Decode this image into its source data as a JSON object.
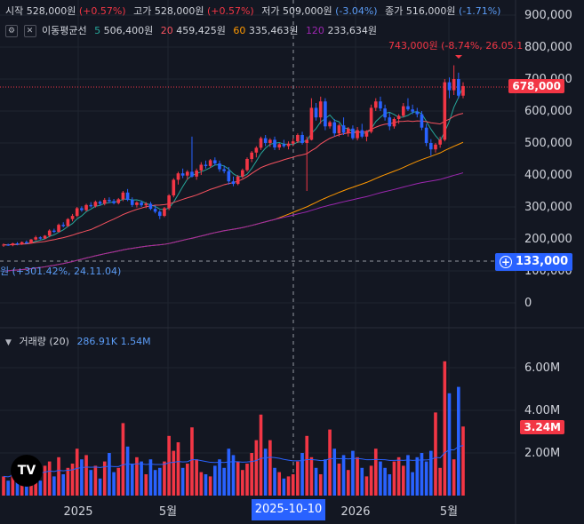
{
  "legend": {
    "open_label": "시작",
    "open_value": "528,000원",
    "open_change": "(+0.57%)",
    "high_label": "고가",
    "high_value": "528,000원",
    "high_change": "(+0.57%)",
    "low_label": "저가",
    "low_value": "509,000원",
    "low_change": "(-3.04%)",
    "close_label": "종가",
    "close_value": "516,000원",
    "close_change": "(-1.71%)",
    "ma_title": "이동평균선",
    "ma5_period": "5",
    "ma5_value": "506,400원",
    "ma20_period": "20",
    "ma20_value": "459,425원",
    "ma60_period": "60",
    "ma60_value": "335,463원",
    "ma120_period": "120",
    "ma120_value": "233,634원",
    "vol_title": "거래량 (20)",
    "vol_ma_value": "286.91K",
    "vol_value": "1.54M"
  },
  "annotations": {
    "high": "743,000원 (-8.74%, 26.05.1",
    "low": "원 (+301.42%, 24.11.04)"
  },
  "price_tags": {
    "last": "678,000",
    "crosshair": "133,000",
    "volume": "3.24M"
  },
  "crosshair_date": "2025-10-10",
  "colors": {
    "up": "#f23645",
    "down": "#2962ff",
    "ma5": "#26a69a",
    "ma20": "#f7525f",
    "ma60": "#ff9800",
    "ma120": "#9c27b0",
    "vol_ma": "#2962ff",
    "background": "#131722"
  },
  "chart_data": [
    {
      "type": "candlestick",
      "title": "",
      "xlabel": "",
      "ylabel": "",
      "ylim": [
        0,
        950000
      ],
      "y_ticks": [
        0,
        100000,
        200000,
        300000,
        400000,
        500000,
        600000,
        700000,
        800000,
        900000
      ],
      "y_tick_labels": [
        "0",
        "100,000",
        "200,000",
        "300,000",
        "400,000",
        "500,000",
        "600,000",
        "700,000",
        "800,000",
        "900,000"
      ],
      "x_tick_labels": [
        "2025",
        "5월",
        "2026",
        "5월"
      ],
      "grid": true,
      "last_price": 678000,
      "crosshair_price": 133000,
      "ohlc": [
        [
          180000,
          186000,
          175000,
          182000
        ],
        [
          182000,
          185000,
          178000,
          180000
        ],
        [
          180000,
          188000,
          177000,
          186000
        ],
        [
          186000,
          190000,
          180000,
          183000
        ],
        [
          183000,
          192000,
          181000,
          190000
        ],
        [
          190000,
          195000,
          184000,
          186000
        ],
        [
          186000,
          200000,
          185000,
          198000
        ],
        [
          198000,
          210000,
          195000,
          205000
        ],
        [
          205000,
          208000,
          198000,
          201000
        ],
        [
          201000,
          212000,
          199000,
          210000
        ],
        [
          210000,
          230000,
          205000,
          226000
        ],
        [
          226000,
          232000,
          218000,
          222000
        ],
        [
          222000,
          248000,
          220000,
          244000
        ],
        [
          244000,
          252000,
          236000,
          240000
        ],
        [
          240000,
          265000,
          238000,
          262000
        ],
        [
          262000,
          278000,
          255000,
          272000
        ],
        [
          272000,
          300000,
          268000,
          296000
        ],
        [
          296000,
          302000,
          285000,
          290000
        ],
        [
          290000,
          310000,
          286000,
          306000
        ],
        [
          306000,
          315000,
          298000,
          302000
        ],
        [
          302000,
          320000,
          298000,
          316000
        ],
        [
          316000,
          320000,
          305000,
          310000
        ],
        [
          310000,
          328000,
          305000,
          322000
        ],
        [
          322000,
          330000,
          312000,
          318000
        ],
        [
          318000,
          325000,
          308000,
          312000
        ],
        [
          312000,
          328000,
          308000,
          324000
        ],
        [
          324000,
          350000,
          318000,
          345000
        ],
        [
          345000,
          356000,
          318000,
          322000
        ],
        [
          322000,
          330000,
          300000,
          306000
        ],
        [
          306000,
          318000,
          298000,
          314000
        ],
        [
          314000,
          320000,
          300000,
          305000
        ],
        [
          305000,
          315000,
          296000,
          310000
        ],
        [
          310000,
          316000,
          290000,
          294000
        ],
        [
          294000,
          305000,
          280000,
          285000
        ],
        [
          285000,
          290000,
          262000,
          272000
        ],
        [
          272000,
          300000,
          268000,
          296000
        ],
        [
          296000,
          340000,
          290000,
          336000
        ],
        [
          336000,
          390000,
          330000,
          385000
        ],
        [
          385000,
          410000,
          370000,
          405000
        ],
        [
          405000,
          420000,
          390000,
          398000
        ],
        [
          398000,
          415000,
          385000,
          410000
        ],
        [
          410000,
          520000,
          392000,
          395000
        ],
        [
          395000,
          420000,
          385000,
          414000
        ],
        [
          414000,
          440000,
          400000,
          432000
        ],
        [
          432000,
          445000,
          420000,
          428000
        ],
        [
          428000,
          450000,
          422000,
          446000
        ],
        [
          446000,
          455000,
          430000,
          436000
        ],
        [
          436000,
          445000,
          410000,
          418000
        ],
        [
          418000,
          430000,
          405000,
          412000
        ],
        [
          412000,
          425000,
          370000,
          380000
        ],
        [
          380000,
          395000,
          365000,
          372000
        ],
        [
          372000,
          400000,
          368000,
          395000
        ],
        [
          395000,
          420000,
          390000,
          415000
        ],
        [
          415000,
          455000,
          410000,
          450000
        ],
        [
          450000,
          475000,
          440000,
          470000
        ],
        [
          470000,
          490000,
          455000,
          485000
        ],
        [
          485000,
          520000,
          478000,
          515000
        ],
        [
          515000,
          525000,
          490000,
          500000
        ],
        [
          500000,
          515000,
          488000,
          510000
        ],
        [
          510000,
          520000,
          478000,
          486000
        ],
        [
          486000,
          500000,
          478000,
          496000
        ],
        [
          496000,
          510000,
          485000,
          490000
        ],
        [
          490000,
          505000,
          480000,
          498000
        ],
        [
          498000,
          515000,
          490000,
          505000
        ],
        [
          505000,
          530000,
          500000,
          525000
        ],
        [
          525000,
          535000,
          495000,
          500000
        ],
        [
          500000,
          520000,
          350000,
          510000
        ],
        [
          510000,
          640000,
          508000,
          610000
        ],
        [
          610000,
          625000,
          570000,
          580000
        ],
        [
          580000,
          645000,
          560000,
          630000
        ],
        [
          630000,
          640000,
          540000,
          552000
        ],
        [
          552000,
          570000,
          545000,
          565000
        ],
        [
          565000,
          575000,
          520000,
          530000
        ],
        [
          530000,
          560000,
          520000,
          555000
        ],
        [
          555000,
          580000,
          525000,
          532000
        ],
        [
          532000,
          550000,
          520000,
          545000
        ],
        [
          545000,
          555000,
          510000,
          515000
        ],
        [
          515000,
          550000,
          508000,
          540000
        ],
        [
          540000,
          560000,
          515000,
          520000
        ],
        [
          520000,
          540000,
          505000,
          535000
        ],
        [
          535000,
          620000,
          530000,
          610000
        ],
        [
          610000,
          640000,
          600000,
          630000
        ],
        [
          630000,
          645000,
          600000,
          608000
        ],
        [
          608000,
          620000,
          570000,
          580000
        ],
        [
          580000,
          595000,
          540000,
          552000
        ],
        [
          552000,
          580000,
          545000,
          575000
        ],
        [
          575000,
          590000,
          560000,
          585000
        ],
        [
          585000,
          625000,
          580000,
          615000
        ],
        [
          615000,
          640000,
          600000,
          605000
        ],
        [
          605000,
          620000,
          590000,
          598000
        ],
        [
          598000,
          610000,
          580000,
          590000
        ],
        [
          590000,
          600000,
          540000,
          548000
        ],
        [
          548000,
          560000,
          490000,
          500000
        ],
        [
          500000,
          512000,
          460000,
          480000
        ],
        [
          480000,
          500000,
          470000,
          495000
        ],
        [
          495000,
          520000,
          485000,
          510000
        ],
        [
          510000,
          700000,
          505000,
          690000
        ],
        [
          690000,
          705000,
          640000,
          665000
        ],
        [
          665000,
          743000,
          650000,
          700000
        ],
        [
          700000,
          720000,
          640000,
          648000
        ],
        [
          648000,
          690000,
          640000,
          678000
        ]
      ],
      "moving_averages": [
        {
          "name": "5",
          "color": "#26a69a",
          "last": 506400
        },
        {
          "name": "20",
          "color": "#f7525f",
          "last": 459425
        },
        {
          "name": "60",
          "color": "#ff9800",
          "last": 335463
        },
        {
          "name": "120",
          "color": "#9c27b0",
          "last": 233634
        }
      ]
    },
    {
      "type": "bar",
      "title": "",
      "ylim": [
        0,
        7000000
      ],
      "y_ticks": [
        2000000,
        4000000,
        6000000
      ],
      "y_tick_labels": [
        "2.00M",
        "4.00M",
        "6.00M"
      ],
      "last_volume": 3240000,
      "values": [
        900000,
        700000,
        1200000,
        800000,
        1300000,
        1000000,
        1500000,
        1100000,
        700000,
        1400000,
        1600000,
        900000,
        1800000,
        1000000,
        1300000,
        1500000,
        2200000,
        1700000,
        1900000,
        1200000,
        1400000,
        800000,
        1600000,
        2000000,
        1100000,
        1300000,
        3400000,
        2300000,
        1500000,
        1800000,
        1600000,
        1000000,
        1700000,
        1200000,
        1300000,
        1600000,
        2800000,
        2100000,
        2500000,
        1300000,
        1500000,
        3200000,
        1700000,
        1100000,
        1000000,
        900000,
        1400000,
        1700000,
        1300000,
        2200000,
        1900000,
        1600000,
        1200000,
        1500000,
        2000000,
        2600000,
        3800000,
        2200000,
        2600000,
        1300000,
        1100000,
        800000,
        900000,
        1000000,
        1600000,
        2000000,
        2800000,
        1800000,
        1300000,
        1000000,
        1700000,
        3100000,
        2200000,
        1500000,
        1900000,
        1200000,
        2100000,
        1800000,
        1300000,
        900000,
        1400000,
        2200000,
        1600000,
        1300000,
        1000000,
        1600000,
        1800000,
        1400000,
        1900000,
        1100000,
        1800000,
        2000000,
        1600000,
        2100000,
        3900000,
        1300000,
        6300000,
        4800000,
        1700000,
        5100000,
        3240000
      ],
      "up": [
        true,
        false,
        true,
        false,
        true,
        false,
        true,
        true,
        false,
        true,
        true,
        false,
        true,
        false,
        true,
        true,
        true,
        false,
        true,
        false,
        true,
        false,
        true,
        false,
        false,
        true,
        true,
        false,
        false,
        true,
        false,
        true,
        false,
        false,
        false,
        true,
        true,
        true,
        true,
        false,
        true,
        true,
        true,
        true,
        false,
        true,
        false,
        false,
        false,
        false,
        false,
        true,
        true,
        true,
        true,
        true,
        true,
        false,
        true,
        false,
        true,
        false,
        true,
        true,
        true,
        false,
        true,
        true,
        false,
        true,
        false,
        true,
        false,
        true,
        false,
        true,
        false,
        true,
        false,
        true,
        true,
        true,
        false,
        false,
        false,
        true,
        true,
        true,
        false,
        false,
        false,
        false,
        false,
        false,
        true,
        true,
        true,
        false,
        true,
        false,
        true
      ],
      "ma_values": [
        900000,
        880000,
        950000,
        920000,
        980000,
        990000,
        1050000,
        1080000,
        1060000,
        1100000,
        1150000,
        1130000,
        1180000,
        1160000,
        1190000,
        1210000,
        1280000,
        1310000,
        1340000,
        1330000,
        1340000,
        1320000,
        1350000,
        1380000,
        1360000,
        1360000,
        1450000,
        1480000,
        1470000,
        1490000,
        1490000,
        1460000,
        1480000,
        1460000,
        1460000,
        1470000,
        1540000,
        1560000,
        1600000,
        1580000,
        1590000,
        1680000,
        1680000,
        1640000,
        1600000,
        1560000,
        1550000,
        1560000,
        1550000,
        1580000,
        1590000,
        1590000,
        1570000,
        1580000,
        1600000,
        1640000,
        1750000,
        1760000,
        1800000,
        1780000,
        1750000,
        1700000,
        1660000,
        1630000,
        1630000,
        1640000,
        1690000,
        1690000,
        1670000,
        1640000,
        1650000,
        1730000,
        1740000,
        1730000,
        1740000,
        1720000,
        1740000,
        1740000,
        1720000,
        1680000,
        1680000,
        1700000,
        1690000,
        1680000,
        1650000,
        1650000,
        1660000,
        1650000,
        1670000,
        1650000,
        1660000,
        1670000,
        1670000,
        1690000,
        1790000,
        1770000,
        2010000,
        2150000,
        2140000,
        2300000,
        2350000
      ]
    }
  ]
}
